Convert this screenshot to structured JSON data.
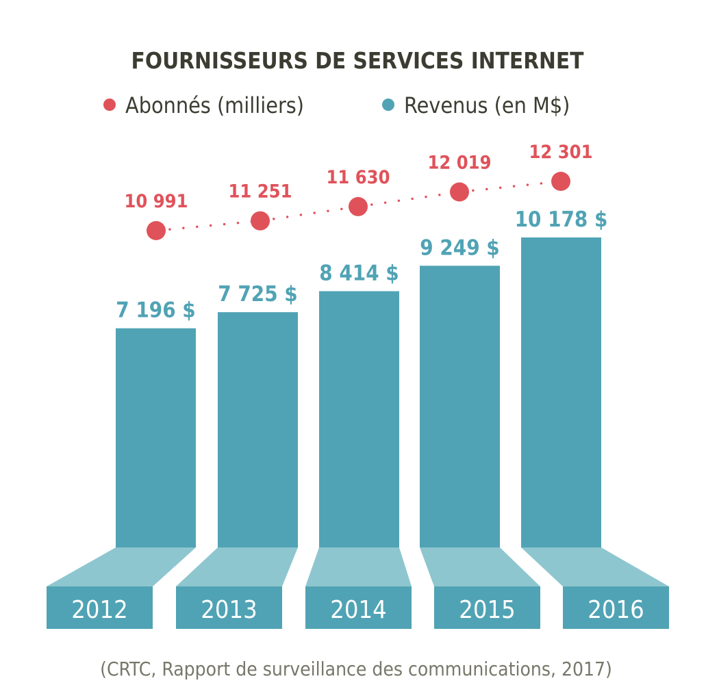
{
  "chart_data": {
    "type": "bar",
    "title": "FOURNISSEURS DE SERVICES INTERNET",
    "categories": [
      "2012",
      "2013",
      "2014",
      "2015",
      "2016"
    ],
    "series": [
      {
        "name": "Abonnés (milliers)",
        "kind": "line-dotted",
        "color": "#e0525a",
        "values": [
          10991,
          11251,
          11630,
          12019,
          12301
        ],
        "labels": [
          "10 991",
          "11 251",
          "11 630",
          "12 019",
          "12 301"
        ]
      },
      {
        "name": "Revenus (en M$)",
        "kind": "bar",
        "color": "#50a3b4",
        "values": [
          7196,
          7725,
          8414,
          9249,
          10178
        ],
        "labels": [
          "7 196 $",
          "7 725 $",
          "8 414 $",
          "9 249 $",
          "10 178 $"
        ]
      }
    ],
    "legend": [
      "Abonnés (milliers)",
      "Revenus (en M$)"
    ],
    "legend_position": "top",
    "source": "(CRTC, Rapport de surveillance des communications, 2017)",
    "grid": false
  }
}
